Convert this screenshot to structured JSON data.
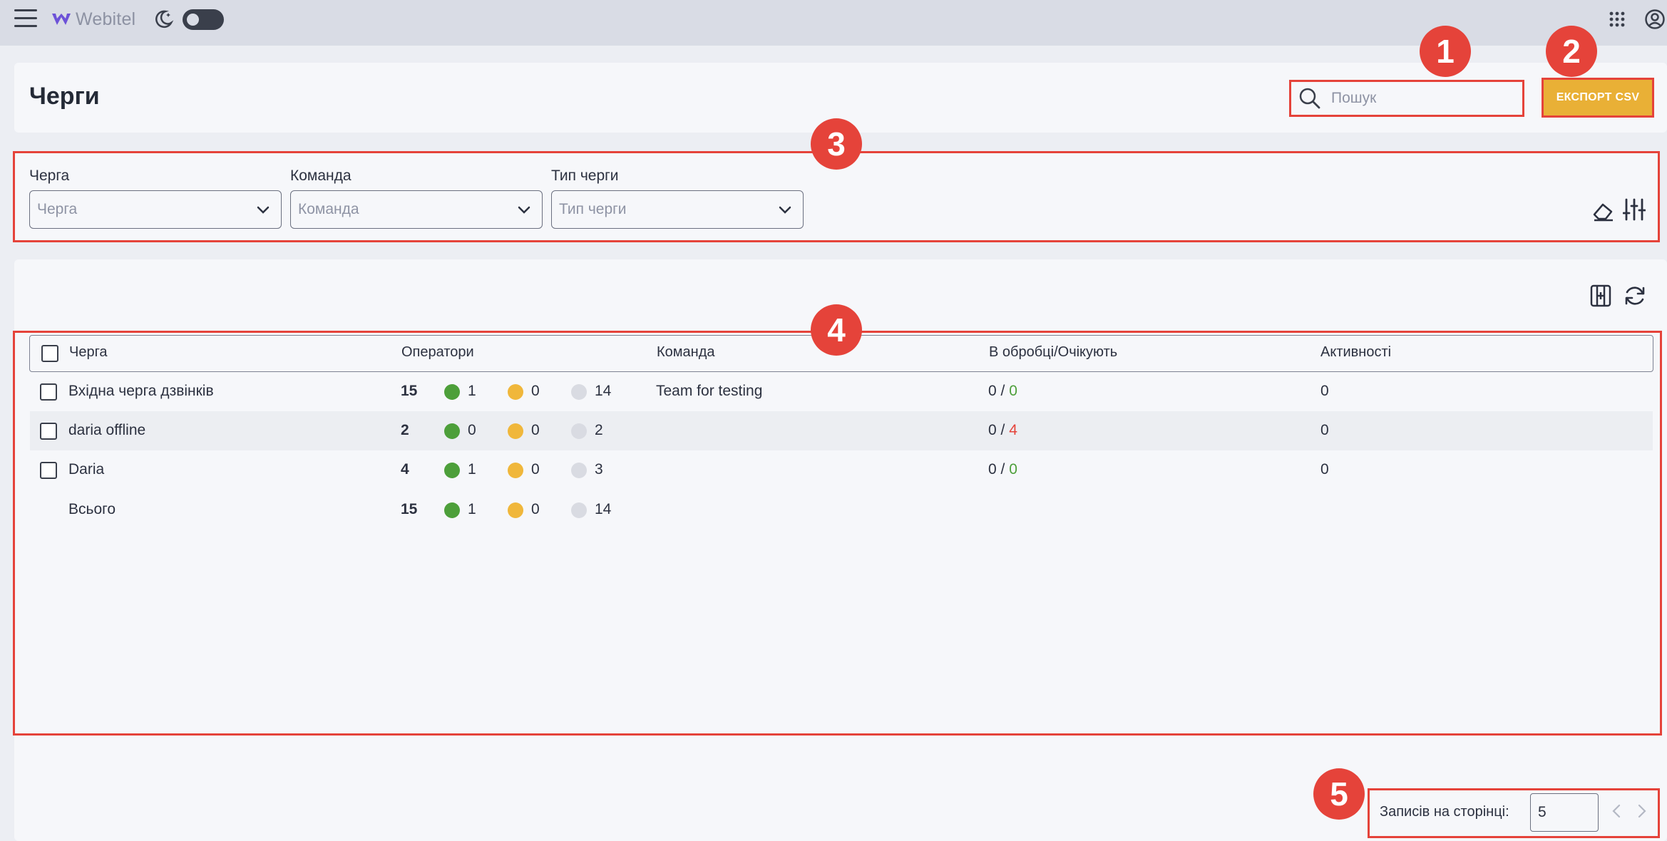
{
  "app": {
    "brand": "Webitel"
  },
  "header": {
    "title": "Черги",
    "search_placeholder": "Пошук",
    "export_label": "ЕКСПОРТ CSV"
  },
  "filters": [
    {
      "label": "Черга",
      "placeholder": "Черга"
    },
    {
      "label": "Команда",
      "placeholder": "Команда"
    },
    {
      "label": "Тип черги",
      "placeholder": "Тип черги"
    }
  ],
  "table": {
    "columns": [
      "Черга",
      "Оператори",
      "Команда",
      "В обробці/Очікують",
      "Активності"
    ],
    "rows": [
      {
        "name": "Вхідна черга дзвінків",
        "total": "15",
        "online": "1",
        "pause": "0",
        "offline": "14",
        "team": "Team for testing",
        "processing": "0",
        "waiting": "0",
        "activity": "0"
      },
      {
        "name": "daria offline",
        "total": "2",
        "online": "0",
        "pause": "0",
        "offline": "2",
        "team": "",
        "processing": "0",
        "waiting": "4",
        "activity": "0"
      },
      {
        "name": "Daria",
        "total": "4",
        "online": "1",
        "pause": "0",
        "offline": "3",
        "team": "",
        "processing": "0",
        "waiting": "0",
        "activity": "0"
      }
    ],
    "total_row": {
      "name": "Всього",
      "total": "15",
      "online": "1",
      "pause": "0",
      "offline": "14"
    },
    "separator": "/"
  },
  "pagination": {
    "label": "Записів на сторінці:",
    "per_page": "5"
  },
  "annotations": [
    "1",
    "2",
    "3",
    "4",
    "5"
  ],
  "colors": {
    "annotation_red": "#e5433a",
    "export_yellow": "#e9b036",
    "status_online": "#4d9f3a",
    "status_pause": "#f0b73b",
    "status_offline": "#d9dbe2",
    "waiting_alert": "#e5433a"
  }
}
